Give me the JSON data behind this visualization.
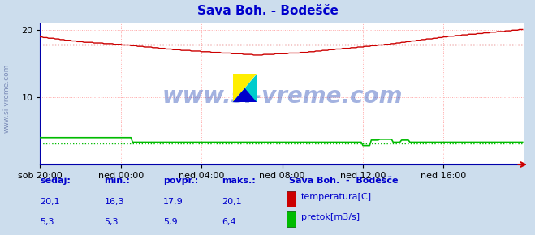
{
  "title": "Sava Boh. - Bodešče",
  "title_color": "#0000cc",
  "bg_color": "#ccdded",
  "plot_bg_color": "#ffffff",
  "grid_color": "#ffaaaa",
  "xlim": [
    0,
    288
  ],
  "ylim": [
    0,
    21
  ],
  "yticks": [
    10,
    20
  ],
  "xtick_labels": [
    "sob 20:00",
    "ned 00:00",
    "ned 04:00",
    "ned 08:00",
    "ned 12:00",
    "ned 16:00"
  ],
  "xtick_positions": [
    0,
    48,
    96,
    144,
    192,
    240
  ],
  "temp_color": "#cc0000",
  "flow_color": "#00bb00",
  "temp_avg": 17.9,
  "flow_avg_scaled": 3.15,
  "watermark": "www.si-vreme.com",
  "watermark_color": "#3355bb",
  "ylabel_side": "www.si-vreme.com",
  "footer_labels": [
    "sedaj:",
    "min.:",
    "povpr.:",
    "maks.:"
  ],
  "footer_temp": [
    "20,1",
    "16,3",
    "17,9",
    "20,1"
  ],
  "footer_flow": [
    "5,3",
    "5,3",
    "5,9",
    "6,4"
  ],
  "footer_station": "Sava Boh.  -  Bodešče",
  "legend_temp": "temperatura[C]",
  "legend_flow": "pretok[m3/s]",
  "footer_color": "#0000cc",
  "axis_color": "#0000aa",
  "baseline_color": "#0000cc",
  "arrow_color": "#cc0000"
}
